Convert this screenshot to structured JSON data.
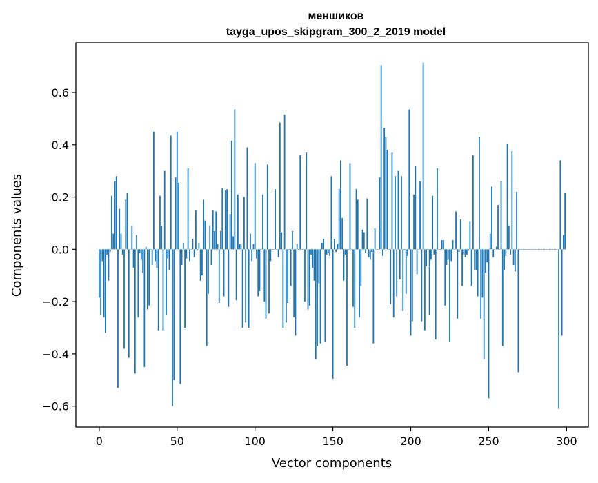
{
  "chart_data": {
    "type": "bar",
    "title_lines": [
      "меншиков",
      "tayga_upos_skipgram_300_2_2019 model"
    ],
    "xlabel": "Vector components",
    "ylabel": "Components values",
    "xlim": [
      -15,
      314
    ],
    "ylim": [
      -0.68,
      0.79
    ],
    "x_ticks": [
      0,
      50,
      100,
      150,
      200,
      250,
      300
    ],
    "x_tick_labels": [
      "0",
      "50",
      "100",
      "150",
      "200",
      "250",
      "300"
    ],
    "y_ticks": [
      -0.6,
      -0.4,
      -0.2,
      0.0,
      0.2,
      0.4,
      0.6
    ],
    "y_tick_labels": [
      "−0.6",
      "−0.4",
      "−0.2",
      "0.0",
      "0.2",
      "0.4",
      "0.6"
    ],
    "bar_color": "#1f77b4",
    "grid": false,
    "x": "0..299 (one bar per vector component)",
    "values": [
      -0.185,
      -0.25,
      -0.045,
      -0.26,
      -0.32,
      -0.02,
      -0.12,
      -0.01,
      0.205,
      0.06,
      0.26,
      0.28,
      -0.53,
      0.155,
      0.06,
      -0.02,
      -0.38,
      0.19,
      0.215,
      -0.415,
      0.0,
      0.09,
      -0.07,
      -0.475,
      0.055,
      -0.26,
      -0.015,
      -0.04,
      -0.09,
      -0.45,
      0.01,
      -0.23,
      -0.215,
      0.0,
      -0.06,
      0.45,
      -0.045,
      -0.07,
      -0.31,
      0.205,
      0.09,
      -0.31,
      0.3,
      -0.25,
      -0.035,
      -0.08,
      0.435,
      -0.6,
      -0.5,
      0.275,
      0.45,
      0.255,
      -0.515,
      -0.06,
      0.025,
      -0.3,
      -0.035,
      0.31,
      -0.045,
      0.0,
      0.04,
      -0.03,
      0.15,
      -0.005,
      0.025,
      -0.12,
      -0.1,
      0.19,
      0.11,
      -0.37,
      -0.17,
      0.09,
      -0.06,
      0.15,
      0.07,
      0.145,
      0.02,
      -0.205,
      0.07,
      0.235,
      -0.18,
      0.225,
      0.23,
      -0.22,
      0.135,
      0.415,
      0.05,
      0.535,
      -0.195,
      0.21,
      0.02,
      0.02,
      -0.3,
      0.2,
      -0.28,
      0.39,
      -0.3,
      0.06,
      -0.045,
      0.02,
      0.33,
      -0.035,
      -0.18,
      -0.16,
      0.0,
      0.21,
      -0.2,
      -0.265,
      0.325,
      -0.245,
      -0.045,
      0.0,
      0.0,
      0.23,
      0.0,
      -0.03,
      0.485,
      0.065,
      -0.3,
      0.515,
      -0.28,
      -0.205,
      0.0,
      -0.14,
      0.07,
      -0.26,
      -0.33,
      0.02,
      0.0,
      0.36,
      0.0,
      0.0,
      -0.2,
      0.37,
      -0.23,
      -0.215,
      -0.02,
      -0.07,
      -0.12,
      -0.42,
      -0.37,
      -0.13,
      -0.36,
      0.025,
      0.04,
      -0.355,
      -0.02,
      -0.015,
      -0.025,
      0.28,
      -0.495,
      0.04,
      -0.01,
      0.02,
      0.23,
      0.34,
      0.12,
      -0.12,
      -0.02,
      -0.445,
      0.0,
      0.33,
      0.0,
      -0.22,
      -0.3,
      0.23,
      0.19,
      -0.26,
      -0.14,
      0.075,
      0.065,
      -0.015,
      0.195,
      -0.03,
      -0.04,
      -0.01,
      -0.36,
      0.08,
      0.0,
      0.0,
      0.275,
      0.705,
      -0.025,
      0.465,
      0.43,
      0.38,
      0.0,
      -0.21,
      0.37,
      -0.26,
      0.28,
      -0.18,
      0.3,
      -0.115,
      0.28,
      -0.235,
      0.0,
      -0.17,
      -0.025,
      0.535,
      -0.33,
      -0.275,
      0.21,
      0.32,
      -0.095,
      0.0,
      0.26,
      -0.275,
      0.715,
      -0.31,
      -0.065,
      0.0,
      -0.25,
      -0.04,
      0.205,
      -0.02,
      -0.345,
      0.31,
      0.0,
      0.0,
      0.035,
      0.035,
      -0.215,
      -0.06,
      -0.04,
      -0.355,
      -0.045,
      0.035,
      0.0,
      0.145,
      -0.265,
      -0.01,
      0.115,
      -0.14,
      -0.02,
      -0.03,
      -0.02,
      -0.005,
      0.105,
      -0.14,
      0.36,
      -0.08,
      -0.08,
      -0.18,
      0.43,
      -0.265,
      -0.185,
      -0.42,
      -0.09,
      -0.05,
      -0.57,
      0.06,
      0.24,
      -0.03,
      0.0,
      0.01,
      0.17,
      0.0,
      0.26,
      -0.37,
      -0.08,
      -0.025,
      0.405,
      0.09,
      -0.02,
      0.375,
      -0.06,
      -0.085,
      0.22,
      -0.47,
      0.0,
      0.0,
      0.0,
      0.0,
      0.0,
      0.0,
      0.0,
      0.0,
      0.0,
      0.0,
      0.0,
      0.0,
      0.0,
      0.0,
      0.0,
      0.0,
      0.0,
      0.0,
      0.0,
      0.0,
      0.0,
      0.0,
      0.0,
      0.0,
      0.0,
      -0.61,
      0.34,
      -0.33,
      0.055,
      0.215
    ]
  }
}
